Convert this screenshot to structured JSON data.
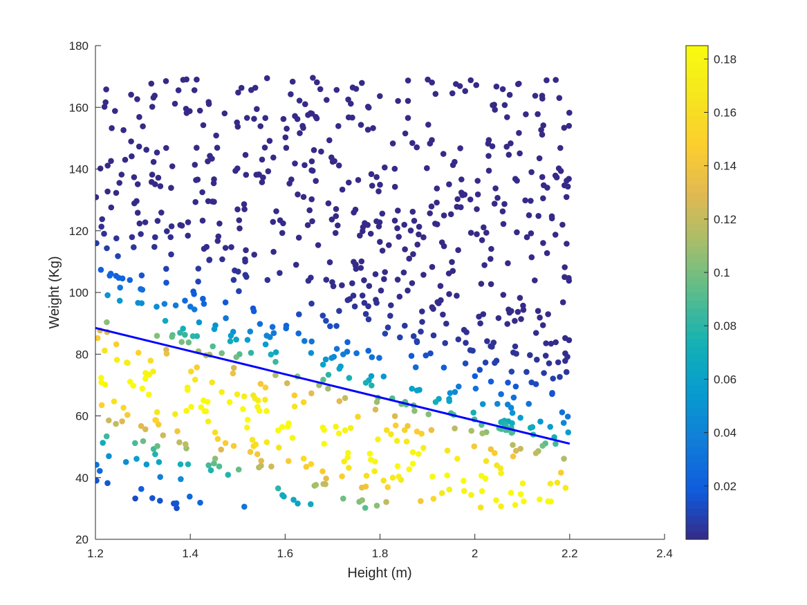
{
  "chart_data": {
    "type": "scatter",
    "title": "",
    "xlabel": "Height (m)",
    "ylabel": "Weight (Kg)",
    "xlim": [
      1.2,
      2.4
    ],
    "ylim": [
      20,
      180
    ],
    "xticks": [
      "1.2",
      "1.4",
      "1.6",
      "1.8",
      "2",
      "2.2",
      "2.4"
    ],
    "yticks": [
      "20",
      "40",
      "60",
      "80",
      "100",
      "120",
      "140",
      "160",
      "180"
    ],
    "grid": false,
    "legend": "none",
    "colormap": "parula",
    "colorbar": {
      "range": [
        0.0,
        0.185
      ],
      "ticks": [
        "0.02",
        "0.04",
        "0.06",
        "0.08",
        "0.1",
        "0.12",
        "0.14",
        "0.16",
        "0.18"
      ]
    },
    "fit_line": {
      "x": [
        1.2,
        2.2
      ],
      "y": [
        88.5,
        51
      ],
      "color": "#0000ff"
    },
    "marker_size": 6,
    "point_generation": {
      "count": 950,
      "x_range": [
        1.2,
        2.2
      ],
      "y_range": [
        30,
        170
      ],
      "color_formula": "0.185 * exp(-((y - (127.8 - 44.5*x))^2) / (2*16^2))",
      "extra_cluster": {
        "x_range": [
          2.05,
          2.08
        ],
        "y_range": [
          54,
          59
        ],
        "count": 15
      }
    }
  }
}
